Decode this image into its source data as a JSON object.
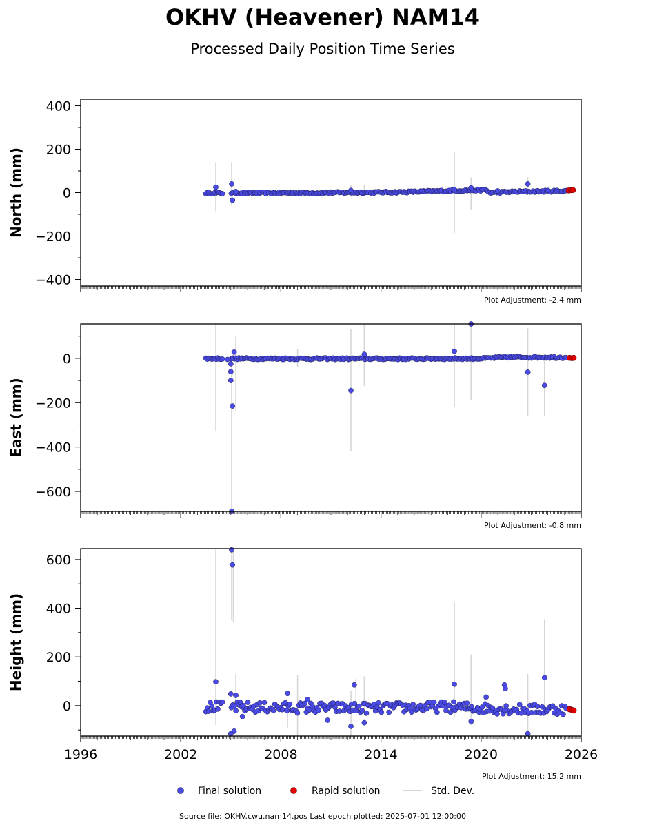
{
  "title": "OKHV (Heavener) NAM14",
  "subtitle": "Processed Daily Position Time Series",
  "source_note": "Source file: OKHV.cwu.nam14.pos  Last epoch plotted: 2025-07-01 12:00:00",
  "legend": {
    "final": "Final solution",
    "rapid": "Rapid solution",
    "stddev": "Std. Dev."
  },
  "colors": {
    "final": "#4a4ae6",
    "final_edge": "#1a1a4a",
    "rapid": "#e00000",
    "stddev": "#d6d6d6"
  },
  "chart_data": [
    {
      "type": "scatter",
      "ylabel": "North (mm)",
      "ylim": [
        -430,
        430
      ],
      "yticks": [
        -400,
        -200,
        0,
        200,
        400
      ],
      "xlim": [
        1996,
        2026
      ],
      "adjustment": "Plot Adjustment: -2.4 mm",
      "start": 2003.5,
      "gap": [
        2004.5,
        2005.0
      ],
      "end": 2025.1,
      "band": 4,
      "trend": [
        [
          2003.5,
          -2
        ],
        [
          2010,
          -1
        ],
        [
          2015,
          2
        ],
        [
          2019,
          10
        ],
        [
          2020.3,
          12
        ],
        [
          2020.5,
          0
        ],
        [
          2022,
          4
        ],
        [
          2025.1,
          8
        ]
      ],
      "outliers": [
        [
          2004.1,
          25
        ],
        [
          2005.05,
          40
        ],
        [
          2005.1,
          -35
        ],
        [
          2005.3,
          5
        ],
        [
          2012.2,
          10
        ],
        [
          2018.4,
          14
        ],
        [
          2019.4,
          22
        ],
        [
          2021.0,
          8
        ],
        [
          2022.8,
          40
        ],
        [
          2024.0,
          10
        ]
      ],
      "stddev": [
        [
          2004.1,
          -85,
          140
        ],
        [
          2005.05,
          -60,
          140
        ],
        [
          2012.2,
          -15,
          35
        ],
        [
          2013.0,
          -10,
          35
        ],
        [
          2018.4,
          -185,
          185
        ],
        [
          2019.4,
          -80,
          70
        ],
        [
          2022.8,
          -10,
          70
        ]
      ],
      "rapid": [
        [
          2025.25,
          10
        ],
        [
          2025.4,
          11
        ],
        [
          2025.5,
          12
        ]
      ]
    },
    {
      "type": "scatter",
      "ylabel": "East (mm)",
      "ylim": [
        -690,
        155
      ],
      "yticks": [
        -600,
        -400,
        -200,
        0
      ],
      "xlim": [
        1996,
        2026
      ],
      "adjustment": "Plot Adjustment: -0.8 mm",
      "start": 2003.5,
      "gap": [
        2004.5,
        2005.0
      ],
      "end": 2025.1,
      "band": 4,
      "trend": [
        [
          2003.5,
          -1
        ],
        [
          2015,
          -2
        ],
        [
          2020,
          -1
        ],
        [
          2021.5,
          5
        ],
        [
          2025.1,
          4
        ]
      ],
      "outliers": [
        [
          2004.8,
          -5
        ],
        [
          2005.0,
          -25
        ],
        [
          2005.0,
          -60
        ],
        [
          2005.0,
          -100
        ],
        [
          2005.05,
          -690
        ],
        [
          2005.1,
          -215
        ],
        [
          2005.2,
          28
        ],
        [
          2012.2,
          -145
        ],
        [
          2013.0,
          18
        ],
        [
          2018.4,
          32
        ],
        [
          2019.4,
          155
        ],
        [
          2022.8,
          -62
        ],
        [
          2023.8,
          -122
        ]
      ],
      "stddev": [
        [
          2004.1,
          -330,
          160
        ],
        [
          2005.05,
          -690,
          0
        ],
        [
          2005.3,
          -240,
          100
        ],
        [
          2009.0,
          -40,
          40
        ],
        [
          2012.2,
          -420,
          130
        ],
        [
          2013.0,
          -125,
          160
        ],
        [
          2018.4,
          -220,
          155
        ],
        [
          2019.4,
          -190,
          150
        ],
        [
          2022.8,
          -260,
          135
        ],
        [
          2023.8,
          -260,
          20
        ]
      ],
      "rapid": [
        [
          2025.3,
          2
        ],
        [
          2025.45,
          1
        ],
        [
          2025.55,
          2
        ]
      ]
    },
    {
      "type": "scatter",
      "ylabel": "Height (mm)",
      "ylim": [
        -125,
        645
      ],
      "yticks": [
        0,
        200,
        400,
        600
      ],
      "xlim": [
        1996,
        2026
      ],
      "xticks": [
        1996,
        2002,
        2008,
        2014,
        2020,
        2026
      ],
      "adjustment": "Plot Adjustment: 15.2 mm",
      "start": 2003.5,
      "gap": [
        2004.5,
        2005.0
      ],
      "end": 2025.1,
      "band": 22,
      "trend": [
        [
          2003.5,
          -5
        ],
        [
          2008,
          -8
        ],
        [
          2014,
          -10
        ],
        [
          2018,
          -5
        ],
        [
          2020,
          -10
        ],
        [
          2022,
          -15
        ],
        [
          2025.1,
          -15
        ]
      ],
      "outliers": [
        [
          2004.1,
          98
        ],
        [
          2005.0,
          48
        ],
        [
          2005.05,
          640
        ],
        [
          2005.1,
          578
        ],
        [
          2005.2,
          -105
        ],
        [
          2005.0,
          -115
        ],
        [
          2005.3,
          42
        ],
        [
          2005.7,
          -45
        ],
        [
          2008.4,
          50
        ],
        [
          2009.6,
          25
        ],
        [
          2010.8,
          -60
        ],
        [
          2012.2,
          -85
        ],
        [
          2012.4,
          85
        ],
        [
          2013.0,
          -70
        ],
        [
          2018.4,
          88
        ],
        [
          2019.4,
          -65
        ],
        [
          2020.3,
          35
        ],
        [
          2021.4,
          85
        ],
        [
          2021.45,
          70
        ],
        [
          2022.8,
          -115
        ],
        [
          2023.8,
          115
        ],
        [
          2025.3,
          -12
        ]
      ],
      "stddev": [
        [
          2004.1,
          -80,
          645
        ],
        [
          2005.05,
          350,
          645
        ],
        [
          2005.15,
          345,
          645
        ],
        [
          2005.3,
          -20,
          130
        ],
        [
          2008.4,
          -90,
          10
        ],
        [
          2009.0,
          -125,
          125
        ],
        [
          2012.2,
          -125,
          60
        ],
        [
          2012.5,
          15,
          110
        ],
        [
          2013.0,
          -25,
          120
        ],
        [
          2018.4,
          -45,
          425
        ],
        [
          2019.4,
          -80,
          210
        ],
        [
          2022.8,
          -125,
          130
        ],
        [
          2023.8,
          -20,
          355
        ]
      ],
      "rapid": [
        [
          2025.3,
          -15
        ],
        [
          2025.45,
          -18
        ],
        [
          2025.55,
          -20
        ]
      ]
    }
  ]
}
